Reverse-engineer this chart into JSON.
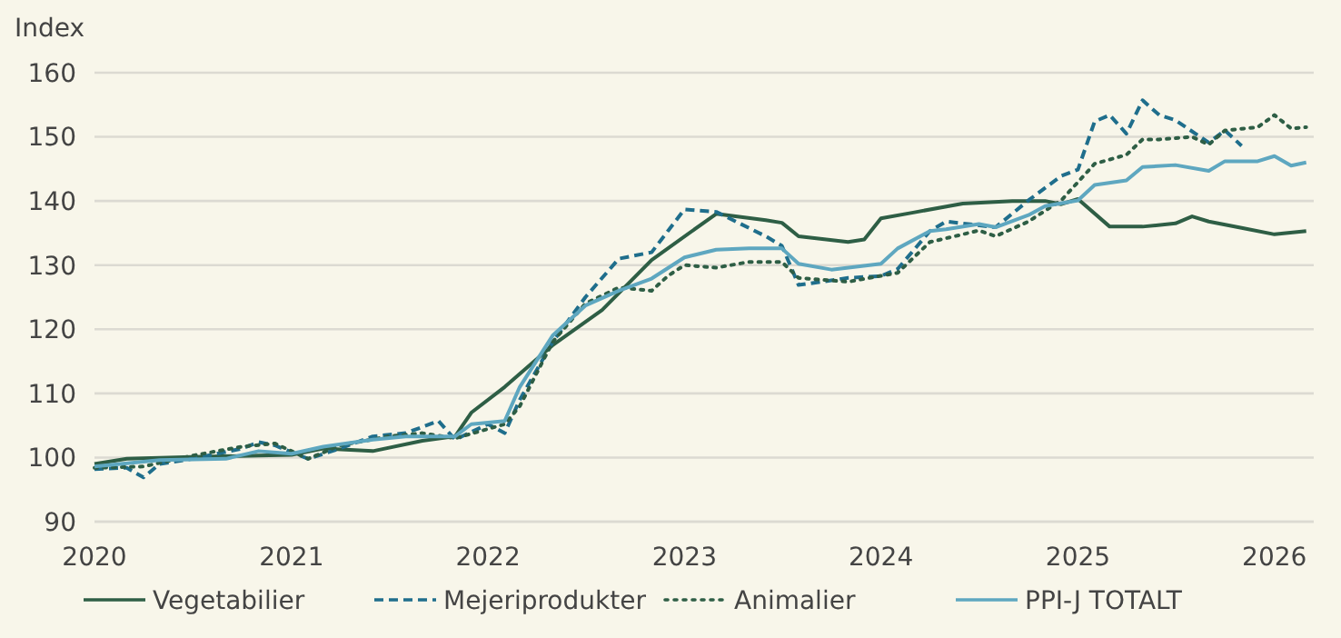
{
  "chart_data": {
    "type": "line",
    "ylabel": "Index",
    "xlim": [
      "2020-01",
      "2026-03-15"
    ],
    "xticks": [
      "2020",
      "2021",
      "2022",
      "2023",
      "2024",
      "2025",
      "2026"
    ],
    "ylim": [
      90,
      160
    ],
    "yticks": [
      90,
      100,
      110,
      120,
      130,
      140,
      150,
      160
    ],
    "grid": "y",
    "legend": "bottom",
    "series": [
      {
        "name": "Vegetabilier",
        "color": "#2e5e45",
        "line_style": "solid",
        "x": [
          "2020-01",
          "2020-03",
          "2020-07",
          "2020-11",
          "2021-01",
          "2021-03",
          "2021-06",
          "2021-09",
          "2021-11",
          "2021-12",
          "2022-02",
          "2022-05",
          "2022-08",
          "2022-11",
          "2023-03",
          "2023-06",
          "2023-07",
          "2023-08",
          "2023-11",
          "2023-12",
          "2024-01",
          "2024-03",
          "2024-06",
          "2024-09",
          "2024-11",
          "2024-12",
          "2025-01",
          "2025-03",
          "2025-05",
          "2025-07",
          "2025-08",
          "2025-09",
          "2025-11",
          "2026-01",
          "2026-03"
        ],
        "values": [
          99,
          99.8,
          100.1,
          100.3,
          100.4,
          101.4,
          101,
          102.6,
          103.3,
          107,
          111,
          117.5,
          123,
          130.8,
          138,
          137,
          136.6,
          134.5,
          133.6,
          134,
          137.3,
          138.2,
          139.6,
          140,
          140,
          139.5,
          140.3,
          136,
          136,
          136.5,
          137.6,
          136.8,
          135.8,
          134.8,
          135.3
        ]
      },
      {
        "name": "Mejeriprodukter",
        "color": "#1f6e8c",
        "line_style": "dashed",
        "x": [
          "2020-01",
          "2020-03",
          "2020-04",
          "2020-05",
          "2020-07",
          "2020-10",
          "2020-11",
          "2020-12",
          "2021-02",
          "2021-04",
          "2021-06",
          "2021-08",
          "2021-10",
          "2021-11",
          "2022-01",
          "2022-02",
          "2022-03",
          "2022-05",
          "2022-07",
          "2022-09",
          "2022-11",
          "2023-01",
          "2023-03",
          "2023-06",
          "2023-07",
          "2023-08",
          "2023-11",
          "2024-01",
          "2024-02",
          "2024-04",
          "2024-05",
          "2024-08",
          "2024-10",
          "2024-12",
          "2025-01",
          "2025-02",
          "2025-03",
          "2025-04",
          "2025-05",
          "2025-06",
          "2025-07",
          "2025-09",
          "2025-10",
          "2025-11"
        ],
        "values": [
          98.2,
          98.4,
          96.9,
          99,
          99.8,
          101.4,
          102.4,
          101.9,
          99.8,
          101.4,
          103.3,
          103.8,
          105.7,
          102.8,
          105.2,
          103.8,
          109,
          118,
          125,
          131,
          132,
          138.7,
          138.3,
          134.5,
          133,
          126.9,
          128,
          128.3,
          129.4,
          135.3,
          136.8,
          135.9,
          140.1,
          143.9,
          144.9,
          152.4,
          153.4,
          150.5,
          155.7,
          153.4,
          152.6,
          149.1,
          151,
          148.6
        ]
      },
      {
        "name": "Animalier",
        "color": "#2e5e45",
        "line_style": "dotted",
        "x": [
          "2020-01",
          "2020-04",
          "2020-07",
          "2020-10",
          "2020-12",
          "2021-02",
          "2021-04",
          "2021-07",
          "2021-09",
          "2021-11",
          "2022-02",
          "2022-03",
          "2022-05",
          "2022-07",
          "2022-09",
          "2022-11",
          "2022-12",
          "2023-01",
          "2023-03",
          "2023-05",
          "2023-07",
          "2023-08",
          "2023-11",
          "2024-02",
          "2024-04",
          "2024-06",
          "2024-07",
          "2024-08",
          "2024-10",
          "2024-12",
          "2025-02",
          "2025-04",
          "2025-05",
          "2025-06",
          "2025-08",
          "2025-09",
          "2025-10",
          "2025-12",
          "2026-01",
          "2026-02",
          "2026-03"
        ],
        "values": [
          98.4,
          98.6,
          100.3,
          101.7,
          102.2,
          99.8,
          101.9,
          103.3,
          103.8,
          103,
          105.2,
          108,
          118,
          124,
          126.5,
          126,
          128.3,
          130,
          129.6,
          130.5,
          130.5,
          128,
          127.4,
          128.8,
          133.6,
          134.8,
          135.4,
          134.5,
          136.8,
          140.1,
          145.8,
          147.2,
          149.6,
          149.6,
          150,
          148.8,
          151,
          151.5,
          153.4,
          151.3,
          151.5
        ]
      },
      {
        "name": "PPI-J TOTALT",
        "color": "#5ea7c0",
        "line_style": "solid",
        "x": [
          "2020-01",
          "2020-05",
          "2020-09",
          "2020-11",
          "2021-01",
          "2021-03",
          "2021-06",
          "2021-08",
          "2021-11",
          "2021-12",
          "2022-02",
          "2022-03",
          "2022-05",
          "2022-07",
          "2022-09",
          "2022-11",
          "2023-01",
          "2023-03",
          "2023-05",
          "2023-07",
          "2023-08",
          "2023-10",
          "2024-01",
          "2024-02",
          "2024-04",
          "2024-05",
          "2024-07",
          "2024-08",
          "2024-10",
          "2024-11",
          "2025-01",
          "2025-02",
          "2025-04",
          "2025-05",
          "2025-07",
          "2025-09",
          "2025-10",
          "2025-12",
          "2026-01",
          "2026-02",
          "2026-03"
        ],
        "values": [
          98.6,
          99.6,
          99.8,
          101,
          100.6,
          101.7,
          102.8,
          103.3,
          103.3,
          105.2,
          105.7,
          111,
          119,
          123.7,
          126,
          127.9,
          131.2,
          132.4,
          132.6,
          132.6,
          130.2,
          129.3,
          130.2,
          132.6,
          135.3,
          135.6,
          136.4,
          135.9,
          137.8,
          139.2,
          140.1,
          142.5,
          143.2,
          145.3,
          145.6,
          144.7,
          146.2,
          146.2,
          147,
          145.5,
          146
        ]
      }
    ]
  }
}
